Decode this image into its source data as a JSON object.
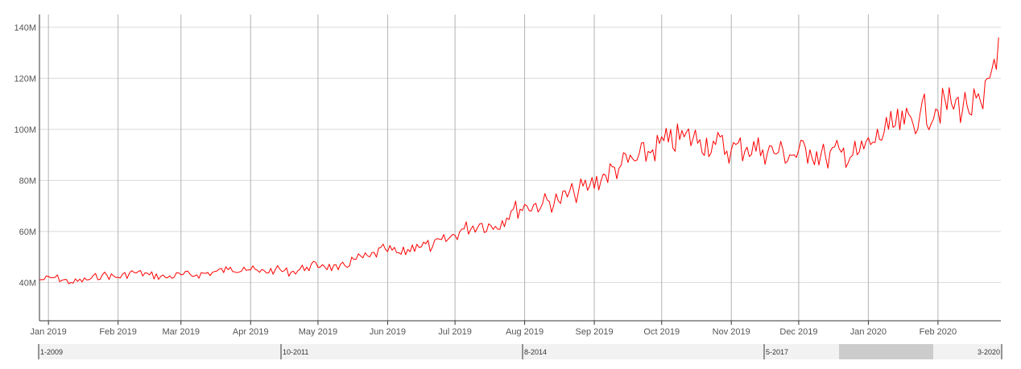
{
  "chart_data": {
    "type": "line",
    "title": "",
    "xlabel": "",
    "ylabel": "",
    "ylim": [
      25000000,
      145000000
    ],
    "y_ticks": [
      {
        "value": 40000000,
        "label": "40M"
      },
      {
        "value": 60000000,
        "label": "60M"
      },
      {
        "value": 80000000,
        "label": "80M"
      },
      {
        "value": 100000000,
        "label": "100M"
      },
      {
        "value": 120000000,
        "label": "120M"
      },
      {
        "value": 140000000,
        "label": "140M"
      }
    ],
    "x_range": [
      "2018-12-28",
      "2020-02-29"
    ],
    "x_ticks": [
      {
        "date": "2019-01-01",
        "label": "Jan 2019"
      },
      {
        "date": "2019-02-01",
        "label": "Feb 2019"
      },
      {
        "date": "2019-03-01",
        "label": "Mar 2019"
      },
      {
        "date": "2019-04-01",
        "label": "Apr 2019"
      },
      {
        "date": "2019-05-01",
        "label": "May 2019"
      },
      {
        "date": "2019-06-01",
        "label": "Jun 2019"
      },
      {
        "date": "2019-07-01",
        "label": "Jul 2019"
      },
      {
        "date": "2019-08-01",
        "label": "Aug 2019"
      },
      {
        "date": "2019-09-01",
        "label": "Sep 2019"
      },
      {
        "date": "2019-10-01",
        "label": "Oct 2019"
      },
      {
        "date": "2019-11-01",
        "label": "Nov 2019"
      },
      {
        "date": "2019-12-01",
        "label": "Dec 2019"
      },
      {
        "date": "2020-01-01",
        "label": "Jan 2020"
      },
      {
        "date": "2020-02-01",
        "label": "Feb 2020"
      }
    ],
    "grid": true,
    "legend": "none",
    "series": [
      {
        "color": "#ff0000",
        "x": [
          "2018-12-28",
          "2019-01-04",
          "2019-01-11",
          "2019-01-18",
          "2019-01-25",
          "2019-02-01",
          "2019-02-08",
          "2019-02-15",
          "2019-02-22",
          "2019-03-01",
          "2019-03-08",
          "2019-03-15",
          "2019-03-22",
          "2019-03-29",
          "2019-04-05",
          "2019-04-12",
          "2019-04-19",
          "2019-04-26",
          "2019-05-03",
          "2019-05-10",
          "2019-05-17",
          "2019-05-24",
          "2019-05-31",
          "2019-06-07",
          "2019-06-14",
          "2019-06-21",
          "2019-06-28",
          "2019-07-05",
          "2019-07-12",
          "2019-07-19",
          "2019-07-26",
          "2019-08-02",
          "2019-08-09",
          "2019-08-16",
          "2019-08-23",
          "2019-08-30",
          "2019-09-06",
          "2019-09-13",
          "2019-09-20",
          "2019-09-27",
          "2019-10-04",
          "2019-10-11",
          "2019-10-18",
          "2019-10-25",
          "2019-11-01",
          "2019-11-08",
          "2019-11-15",
          "2019-11-22",
          "2019-11-29",
          "2019-12-06",
          "2019-12-13",
          "2019-12-20",
          "2019-12-27",
          "2020-01-03",
          "2020-01-10",
          "2020-01-17",
          "2020-01-24",
          "2020-01-31",
          "2020-02-07",
          "2020-02-14",
          "2020-02-21",
          "2020-02-28"
        ],
        "y": [
          41000000,
          42000000,
          40000000,
          41000000,
          43000000,
          42000000,
          44000000,
          43000000,
          42000000,
          43000000,
          43000000,
          44000000,
          45000000,
          46000000,
          44000000,
          45000000,
          44000000,
          46000000,
          47000000,
          45000000,
          49000000,
          50000000,
          53000000,
          51000000,
          55000000,
          54000000,
          57000000,
          61000000,
          63000000,
          62000000,
          68000000,
          70000000,
          71000000,
          72000000,
          75000000,
          78000000,
          82000000,
          86000000,
          88000000,
          92000000,
          95000000,
          97000000,
          96000000,
          94000000,
          92000000,
          93000000,
          92000000,
          91000000,
          90000000,
          92000000,
          89000000,
          91000000,
          90000000,
          95000000,
          100000000,
          102000000,
          106000000,
          108000000,
          110000000,
          109000000,
          108000000,
          136000000
        ]
      }
    ]
  },
  "navigator": {
    "labels": [
      "1-2009",
      "10-2011",
      "8-2014",
      "5-2017",
      "3-2020"
    ]
  }
}
